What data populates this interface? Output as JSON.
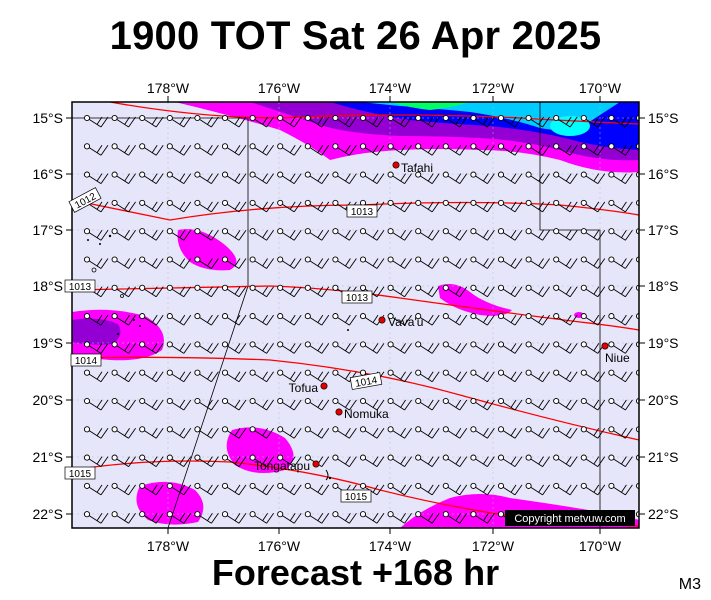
{
  "title": "1900 TOT Sat 26 Apr 2025",
  "footer": "Forecast +168 hr",
  "model_tag": "M3",
  "copyright": "Copyright metvuw.com",
  "lon_ticks": [
    "178°W",
    "176°W",
    "174°W",
    "172°W",
    "170°W"
  ],
  "lat_ticks": [
    "15°S",
    "16°S",
    "17°S",
    "18°S",
    "19°S",
    "20°S",
    "21°S",
    "22°S"
  ],
  "places": [
    "Tafahi",
    "Vava'u",
    "Niue",
    "Tofua",
    "Nomuka",
    "Tongatapu"
  ],
  "isobar_labels": [
    "1012",
    "1013",
    "1013",
    "1013",
    "1014",
    "1014",
    "1015",
    "1015"
  ],
  "colors": {
    "map_bg": "#e6e6fa",
    "isobar": "#ff0000",
    "precip_light": "#ff00ff",
    "precip_mid": "#8a2be2",
    "precip_heavy": "#0000ff",
    "precip_cyan": "#00ffff",
    "precip_green": "#00ff66"
  }
}
